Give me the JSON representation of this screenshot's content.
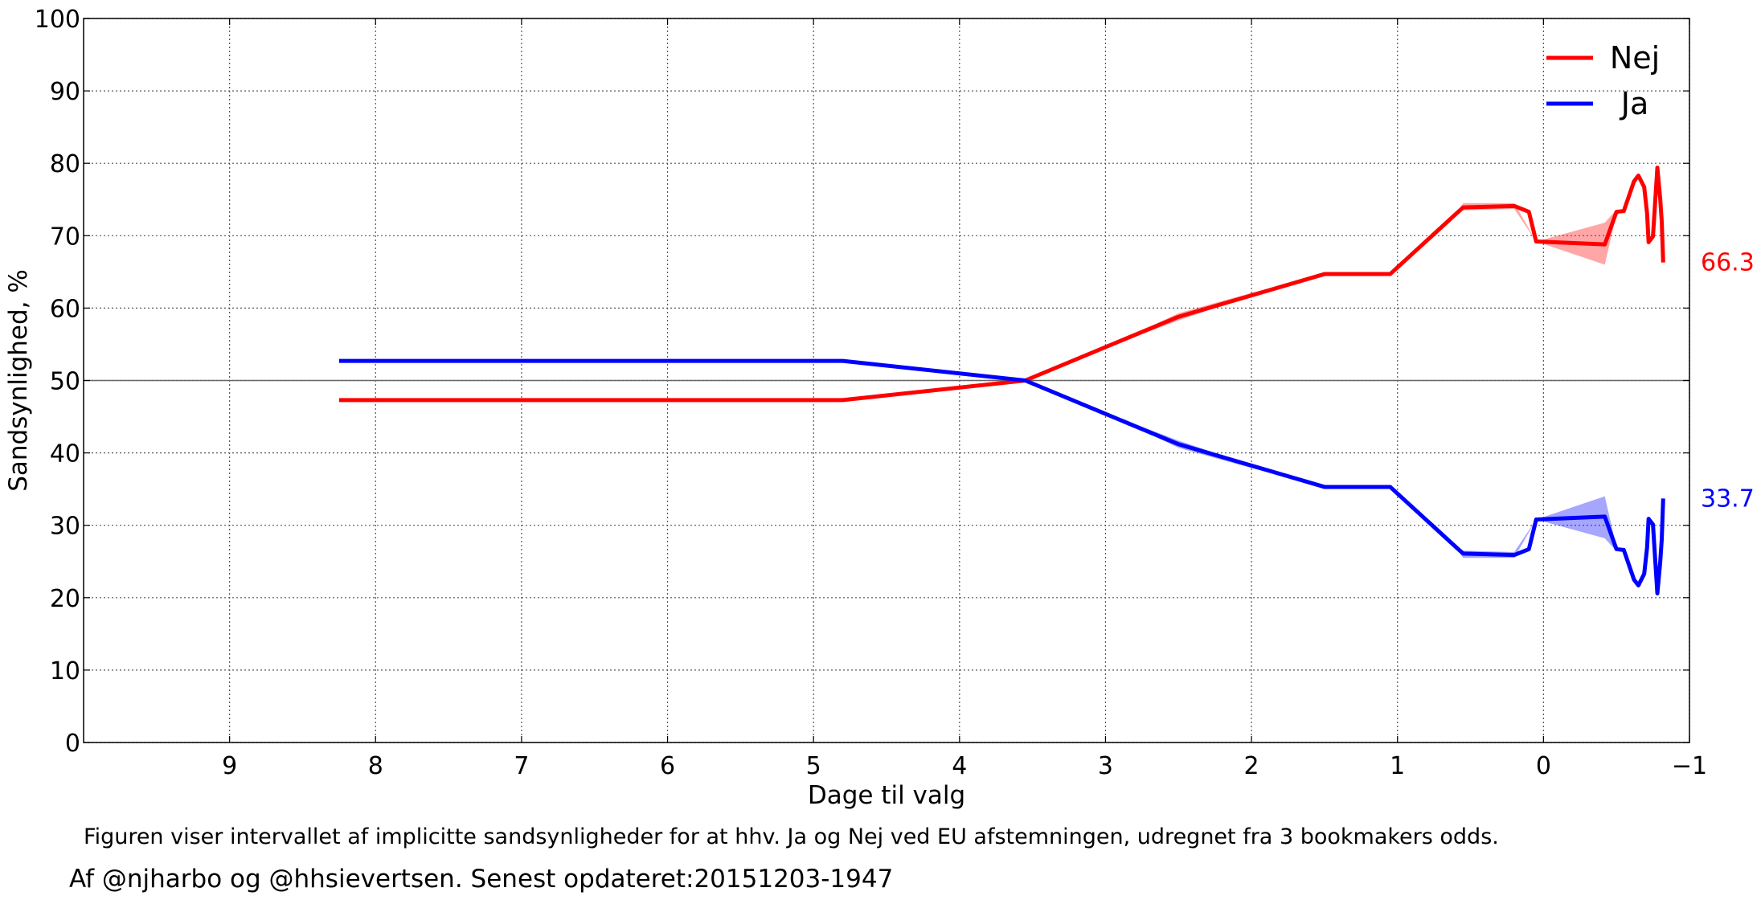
{
  "chart_data": {
    "type": "line",
    "xlabel": "Dage til valg",
    "ylabel": "Sandsynlighed, %",
    "xlim": [
      10,
      -1
    ],
    "ylim": [
      0,
      100
    ],
    "x_inverted": true,
    "x_ticks": [
      9,
      8,
      7,
      6,
      5,
      4,
      3,
      2,
      1,
      0,
      -1
    ],
    "x_tick_labels": [
      "9",
      "8",
      "7",
      "6",
      "5",
      "4",
      "3",
      "2",
      "1",
      "0",
      "−1"
    ],
    "y_ticks": [
      0,
      10,
      20,
      30,
      40,
      50,
      60,
      70,
      80,
      90,
      100
    ],
    "y_tick_labels": [
      "0",
      "10",
      "20",
      "30",
      "40",
      "50",
      "60",
      "70",
      "80",
      "90",
      "100"
    ],
    "grid": true,
    "reference_line_y": 50,
    "legend_position": "top-right",
    "series": [
      {
        "name": "Nej",
        "color": "#ff0000",
        "end_label": "66.3",
        "points": [
          [
            8.25,
            47.3
          ],
          [
            4.8,
            47.3
          ],
          [
            3.55,
            50.0
          ],
          [
            2.5,
            58.8
          ],
          [
            1.5,
            64.7
          ],
          [
            1.05,
            64.7
          ],
          [
            0.6,
            73.0
          ],
          [
            0.55,
            73.9
          ],
          [
            0.2,
            74.1
          ],
          [
            0.1,
            73.3
          ],
          [
            0.05,
            69.2
          ],
          [
            -0.42,
            68.8
          ],
          [
            -0.5,
            73.3
          ],
          [
            -0.55,
            73.4
          ],
          [
            -0.62,
            77.5
          ],
          [
            -0.65,
            78.3
          ],
          [
            -0.69,
            76.7
          ],
          [
            -0.71,
            73.0
          ],
          [
            -0.72,
            69.1
          ],
          [
            -0.75,
            69.9
          ],
          [
            -0.78,
            79.4
          ],
          [
            -0.8,
            75.0
          ],
          [
            -0.81,
            72.0
          ],
          [
            -0.82,
            66.3
          ]
        ],
        "band": [
          [
            3.0,
            54.5,
            54.5
          ],
          [
            2.5,
            58.3,
            59.3
          ],
          [
            2.0,
            61.7,
            62.1
          ],
          [
            1.5,
            64.7,
            64.7
          ],
          [
            0.6,
            73.0,
            73.0
          ],
          [
            0.55,
            73.5,
            74.5
          ],
          [
            0.2,
            73.7,
            74.5
          ],
          [
            0.05,
            69.2,
            69.2
          ],
          [
            -0.42,
            66.0,
            71.8
          ],
          [
            -0.5,
            73.0,
            73.6
          ]
        ]
      },
      {
        "name": "Ja",
        "color": "#0000ff",
        "end_label": "33.7",
        "points": [
          [
            8.25,
            52.7
          ],
          [
            4.8,
            52.7
          ],
          [
            3.55,
            50.0
          ],
          [
            2.5,
            41.2
          ],
          [
            1.5,
            35.3
          ],
          [
            1.05,
            35.3
          ],
          [
            0.6,
            27.0
          ],
          [
            0.55,
            26.1
          ],
          [
            0.2,
            25.9
          ],
          [
            0.1,
            26.7
          ],
          [
            0.05,
            30.8
          ],
          [
            -0.42,
            31.2
          ],
          [
            -0.5,
            26.7
          ],
          [
            -0.55,
            26.6
          ],
          [
            -0.62,
            22.5
          ],
          [
            -0.65,
            21.7
          ],
          [
            -0.69,
            23.3
          ],
          [
            -0.71,
            27.0
          ],
          [
            -0.72,
            30.9
          ],
          [
            -0.75,
            30.1
          ],
          [
            -0.78,
            20.6
          ],
          [
            -0.8,
            25.0
          ],
          [
            -0.81,
            28.0
          ],
          [
            -0.82,
            33.7
          ]
        ],
        "band": [
          [
            3.0,
            45.5,
            45.5
          ],
          [
            2.5,
            40.7,
            41.7
          ],
          [
            2.0,
            37.9,
            38.3
          ],
          [
            1.5,
            35.3,
            35.3
          ],
          [
            0.6,
            27.0,
            27.0
          ],
          [
            0.55,
            25.5,
            26.5
          ],
          [
            0.2,
            25.5,
            26.3
          ],
          [
            0.05,
            30.8,
            30.8
          ],
          [
            -0.42,
            28.2,
            34.0
          ],
          [
            -0.5,
            26.4,
            27.0
          ]
        ]
      }
    ]
  },
  "caption": "Figuren viser intervallet af implicitte sandsynligheder for at hhv. Ja og Nej ved EU afstemningen, udregnet fra 3 bookmakers odds.",
  "credit": "Af @njharbo og @hhsievertsen. Senest opdateret:20151203-1947"
}
